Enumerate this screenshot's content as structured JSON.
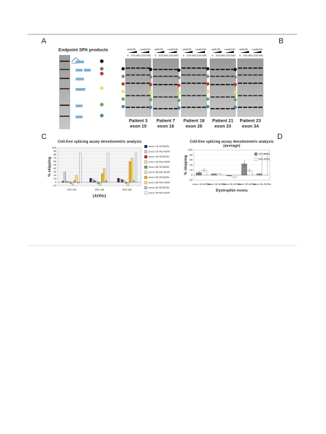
{
  "figure": {
    "panels": {
      "a": "A",
      "b": "B",
      "c": "C",
      "d": "D"
    },
    "spa_title": "Endpoint SPA products",
    "gel_groups": [
      "wtAON",
      "mutAON"
    ],
    "gel_lanes": [
      "0",
      "100",
      "500",
      "100",
      "500"
    ],
    "gels": [
      {
        "patient": "Patient 3",
        "exon": "exon 10"
      },
      {
        "patient": "Patient 7",
        "exon": "exon 16"
      },
      {
        "patient": "Patient 18",
        "exon": "exon 26"
      },
      {
        "patient": "Patient 21",
        "exon": "exon 33"
      },
      {
        "patient": "Patient 23",
        "exon": "exon 34"
      }
    ]
  },
  "chart_data": [
    {
      "type": "bar",
      "title": "Cell-free splicing assay densitometric analysis",
      "y_label": "% skipping",
      "x_label": "[AONs]",
      "categories": [
        "100 nM",
        "200 nM",
        "500 nM"
      ],
      "ylim": [
        -10,
        100
      ],
      "yticks": [
        -10,
        0,
        10,
        20,
        30,
        40,
        50,
        60,
        70,
        80,
        90,
        100
      ],
      "legend": "right",
      "series": [
        {
          "name": "exon 10 WTAON",
          "color": "#1f2a6b",
          "values": [
            3,
            12,
            12
          ]
        },
        {
          "name": "exon 10 Mu-AON",
          "color": "#c6c8e6",
          "values": [
            30,
            10,
            10
          ]
        },
        {
          "name": "exon 16 WTAON",
          "color": "#c0262b",
          "values": [
            2,
            5,
            8
          ]
        },
        {
          "name": "exon 16 Mu-AON",
          "color": "#ecd2d2",
          "values": [
            3,
            4,
            5
          ]
        },
        {
          "name": "exon 26 WTAON",
          "color": "#6aa84f",
          "values": [
            -3,
            -5,
            -3
          ]
        },
        {
          "name": "exon 26 Mu-AON",
          "color": "#d6ecc6",
          "values": [
            -8,
            -10,
            -10
          ]
        },
        {
          "name": "exon 33 WTAON",
          "color": "#f0aa1e",
          "values": [
            5,
            25,
            60
          ]
        },
        {
          "name": "exon 33 Mu-AON",
          "color": "#f8e060",
          "values": [
            20,
            40,
            70
          ]
        },
        {
          "name": "exon 34 WTAON",
          "color": "#b4b6d8",
          "values": [
            -2,
            5,
            5
          ]
        },
        {
          "name": "exon 34 Mu-AON",
          "color": "#f2f2ff",
          "values": [
            85,
            85,
            85
          ]
        }
      ]
    },
    {
      "type": "bar",
      "title": "Cell-free splicing assay densitometric analysis",
      "subtitle": "(average)",
      "y_label": "% skipping",
      "x_label": "Dystrophin exons",
      "categories": [
        "exon 10 AONs",
        "exon 16 AONs",
        "exon 26 AONs",
        "exon 33 AONs",
        "exon 34 AONs"
      ],
      "ylim": [
        -20,
        100
      ],
      "yticks": [
        -20,
        0,
        20,
        40,
        60,
        80,
        100
      ],
      "legend": "upper right",
      "series": [
        {
          "name": "WT-AON",
          "color": "#8a8a8a",
          "values": [
            10,
            5,
            -3,
            45,
            5
          ],
          "errors": [
            8,
            3,
            3,
            15,
            5
          ]
        },
        {
          "name": "MS-AON",
          "color": "#ffffff",
          "values": [
            20,
            5,
            -8,
            18,
            85
          ],
          "errors": [
            8,
            2,
            4,
            8,
            2
          ]
        }
      ]
    }
  ]
}
